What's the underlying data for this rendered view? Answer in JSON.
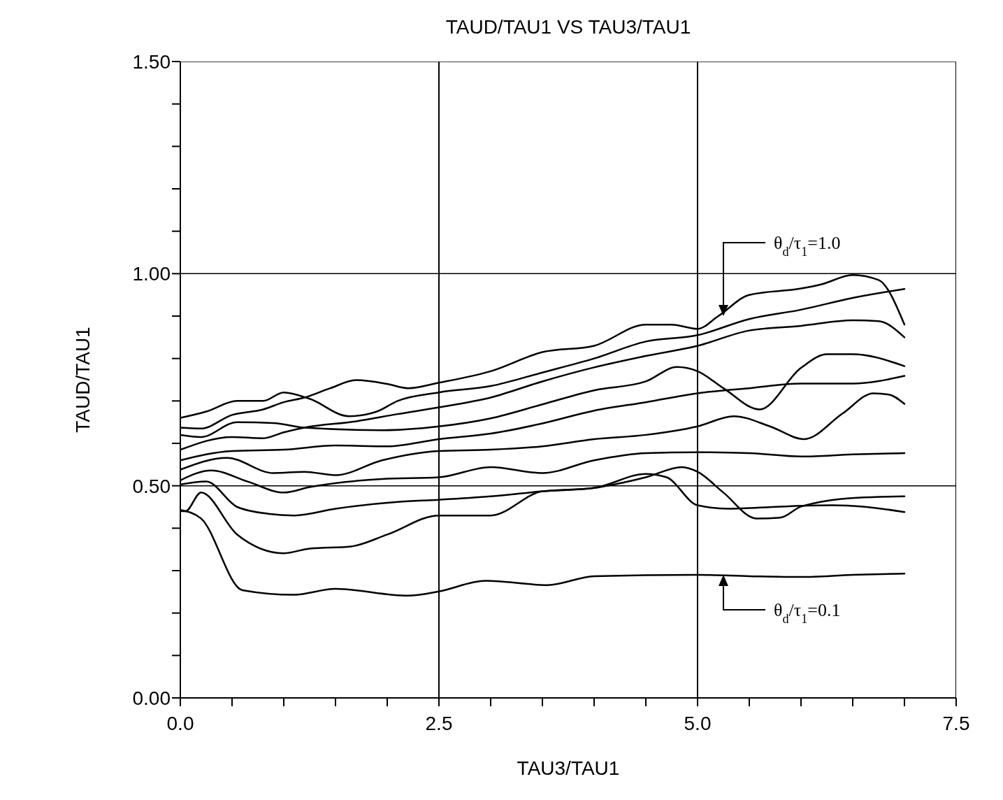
{
  "chart_data": {
    "type": "line",
    "title": "TAUD/TAU1 VS TAU3/TAU1",
    "xlabel": "TAU3/TAU1",
    "ylabel": "TAUD/TAU1",
    "xlim": [
      0,
      7.5
    ],
    "ylim": [
      0,
      1.5
    ],
    "xticks": [
      {
        "value": 0,
        "label": "0.0"
      },
      {
        "value": 0.5,
        "label": null
      },
      {
        "value": 1,
        "label": null
      },
      {
        "value": 1.5,
        "label": null
      },
      {
        "value": 2,
        "label": null
      },
      {
        "value": 2.5,
        "label": "2.5"
      },
      {
        "value": 3,
        "label": null
      },
      {
        "value": 3.5,
        "label": null
      },
      {
        "value": 4,
        "label": null
      },
      {
        "value": 4.5,
        "label": null
      },
      {
        "value": 5,
        "label": "5.0"
      },
      {
        "value": 5.5,
        "label": null
      },
      {
        "value": 6,
        "label": null
      },
      {
        "value": 6.5,
        "label": null
      },
      {
        "value": 7,
        "label": null
      },
      {
        "value": 7.5,
        "label": "7.5"
      }
    ],
    "yticks": [
      {
        "value": 0,
        "label": "0.00"
      },
      {
        "value": 0.1,
        "label": null
      },
      {
        "value": 0.2,
        "label": null
      },
      {
        "value": 0.3,
        "label": null
      },
      {
        "value": 0.4,
        "label": null
      },
      {
        "value": 0.5,
        "label": "0.50"
      },
      {
        "value": 0.6,
        "label": null
      },
      {
        "value": 0.7,
        "label": null
      },
      {
        "value": 0.8,
        "label": null
      },
      {
        "value": 0.9,
        "label": null
      },
      {
        "value": 1,
        "label": "1.00"
      },
      {
        "value": 1.1,
        "label": null
      },
      {
        "value": 1.2,
        "label": null
      },
      {
        "value": 1.3,
        "label": null
      },
      {
        "value": 1.4,
        "label": null
      },
      {
        "value": 1.5,
        "label": "1.50"
      }
    ],
    "grid": true,
    "marker": "none",
    "line_style": "solid",
    "annotations": [
      "θ$_{d}$/τ$_{1}$=1.0",
      "θ$_{d}$/τ$_{1}$=0.1"
    ],
    "series": [
      {
        "color": "#000000",
        "x": [
          0,
          0.2,
          0.5,
          0.8,
          1.0,
          1.2,
          1.45,
          1.7,
          2.0,
          2.2,
          2.5,
          3,
          3.5,
          4,
          4.5,
          4.75,
          5,
          5.2,
          5.5,
          6,
          6.2,
          6.5,
          6.75,
          7
        ],
        "values": [
          0.637,
          0.635,
          0.667,
          0.68,
          0.697,
          0.708,
          0.73,
          0.749,
          0.74,
          0.73,
          0.743,
          0.77,
          0.815,
          0.83,
          0.88,
          0.88,
          0.87,
          0.9,
          0.95,
          0.965,
          0.975,
          0.997,
          0.985,
          0.88
        ]
      },
      {
        "color": "#000000",
        "x": [
          0,
          0.25,
          0.55,
          0.8,
          1.0,
          1.25,
          1.63,
          1.9,
          2.1,
          2.5,
          3,
          3.5,
          4,
          4.5,
          5,
          5.5,
          6,
          6.5,
          7
        ],
        "values": [
          0.66,
          0.675,
          0.7,
          0.7,
          0.72,
          0.705,
          0.664,
          0.675,
          0.7,
          0.72,
          0.735,
          0.767,
          0.8,
          0.84,
          0.855,
          0.893,
          0.915,
          0.943,
          0.964
        ]
      },
      {
        "color": "#000000",
        "x": [
          0,
          0.2,
          0.55,
          0.9,
          1.2,
          1.95,
          2.5,
          3,
          3.5,
          4,
          4.5,
          4.8,
          5,
          5.25,
          5.6,
          6,
          6.25,
          6.5,
          7
        ],
        "values": [
          0.62,
          0.615,
          0.65,
          0.648,
          0.637,
          0.631,
          0.64,
          0.659,
          0.692,
          0.725,
          0.746,
          0.78,
          0.77,
          0.73,
          0.68,
          0.778,
          0.81,
          0.81,
          0.782
        ]
      },
      {
        "color": "#000000",
        "x": [
          0,
          0.5,
          0.8,
          1.0,
          1.2,
          1.7,
          2.1,
          2.5,
          3,
          3.5,
          4,
          4.5,
          5,
          5.5,
          6,
          6.5,
          6.75,
          7
        ],
        "values": [
          0.585,
          0.615,
          0.612,
          0.626,
          0.637,
          0.652,
          0.669,
          0.685,
          0.708,
          0.746,
          0.779,
          0.806,
          0.83,
          0.866,
          0.877,
          0.89,
          0.888,
          0.85
        ]
      },
      {
        "color": "#000000",
        "x": [
          0,
          0.5,
          1.0,
          1.5,
          2.0,
          2.5,
          3,
          3.5,
          4,
          4.5,
          5,
          5.5,
          6,
          6.5,
          7
        ],
        "values": [
          0.56,
          0.582,
          0.585,
          0.595,
          0.593,
          0.61,
          0.623,
          0.647,
          0.677,
          0.697,
          0.718,
          0.73,
          0.741,
          0.741,
          0.759
        ]
      },
      {
        "color": "#000000",
        "x": [
          0,
          0.45,
          0.9,
          1.2,
          1.5,
          1.95,
          2.5,
          3,
          3.5,
          4,
          4.5,
          5,
          5.35,
          5.7,
          6.03,
          6.4,
          6.7,
          6.85,
          7
        ],
        "values": [
          0.538,
          0.566,
          0.53,
          0.533,
          0.525,
          0.56,
          0.582,
          0.585,
          0.593,
          0.61,
          0.62,
          0.64,
          0.664,
          0.64,
          0.61,
          0.67,
          0.718,
          0.715,
          0.693
        ]
      },
      {
        "color": "#000000",
        "x": [
          0,
          0.3,
          0.65,
          1.0,
          1.25,
          1.95,
          2.5,
          3,
          3.5,
          4,
          4.5,
          5,
          5.5,
          6,
          6.5,
          7
        ],
        "values": [
          0.513,
          0.536,
          0.51,
          0.484,
          0.497,
          0.516,
          0.52,
          0.544,
          0.53,
          0.56,
          0.577,
          0.579,
          0.577,
          0.569,
          0.574,
          0.577
        ]
      },
      {
        "color": "#000000",
        "x": [
          0,
          0.25,
          0.55,
          0.85,
          1.1,
          1.5,
          2.1,
          2.5,
          3,
          3.5,
          4,
          4.5,
          4.7,
          5,
          5.3,
          5.8,
          6.3,
          6.6,
          7
        ],
        "values": [
          0.503,
          0.51,
          0.45,
          0.434,
          0.43,
          0.446,
          0.462,
          0.467,
          0.475,
          0.487,
          0.495,
          0.528,
          0.52,
          0.454,
          0.446,
          0.451,
          0.454,
          0.451,
          0.438
        ]
      },
      {
        "color": "#000000",
        "x": [
          0,
          0.05,
          0.2,
          0.55,
          1.0,
          1.25,
          1.65,
          2.0,
          2.5,
          3,
          3.5,
          4,
          4.5,
          4.85,
          5,
          5.25,
          5.57,
          5.8,
          6.0,
          6.55,
          7
        ],
        "values": [
          0.44,
          0.44,
          0.484,
          0.385,
          0.341,
          0.352,
          0.357,
          0.385,
          0.43,
          0.43,
          0.487,
          0.495,
          0.52,
          0.544,
          0.533,
          0.484,
          0.423,
          0.425,
          0.451,
          0.472,
          0.475
        ]
      },
      {
        "color": "#000000",
        "x": [
          0,
          0.2,
          0.6,
          1.1,
          1.5,
          2.2,
          2.5,
          2.95,
          3.55,
          4.0,
          5.0,
          5.5,
          6.0,
          6.5,
          7
        ],
        "values": [
          0.443,
          0.423,
          0.254,
          0.243,
          0.257,
          0.241,
          0.251,
          0.276,
          0.266,
          0.287,
          0.29,
          0.287,
          0.285,
          0.29,
          0.293
        ]
      }
    ]
  }
}
